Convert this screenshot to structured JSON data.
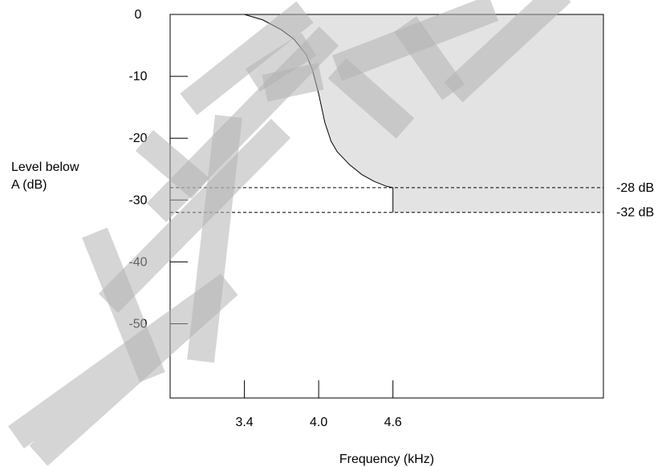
{
  "chart_data": {
    "type": "area",
    "xlabel": "Frequency (kHz)",
    "ylabel_lines": [
      "Level below",
      "A (dB)"
    ],
    "x_ticks": [
      {
        "value": 3.4,
        "label": "3.4"
      },
      {
        "value": 4.0,
        "label": "4.0"
      },
      {
        "value": 4.6,
        "label": "4.6"
      }
    ],
    "y_ticks": [
      {
        "value": 0,
        "label": "0"
      },
      {
        "value": -10,
        "label": "-10"
      },
      {
        "value": -20,
        "label": "-20"
      },
      {
        "value": -30,
        "label": "-30"
      },
      {
        "value": -40,
        "label": "-40"
      },
      {
        "value": -50,
        "label": "-50"
      }
    ],
    "xlim": [
      2.8,
      6.3
    ],
    "ylim": [
      -62,
      0
    ],
    "grid": false,
    "curve": {
      "x": [
        2.8,
        3.4,
        3.55,
        3.7,
        3.8,
        3.9,
        3.95,
        4.0,
        4.05,
        4.1,
        4.15,
        4.25,
        4.35,
        4.45,
        4.55,
        4.6
      ],
      "y": [
        0,
        0,
        -0.9,
        -2.5,
        -4.0,
        -6.5,
        -9.0,
        -12.8,
        -17.5,
        -20.5,
        -22.2,
        -24.3,
        -25.9,
        -27.0,
        -27.8,
        -28.0
      ]
    },
    "step": {
      "x": 4.6,
      "from": -28,
      "to": -32
    },
    "shaded_region_color": "#e3e3e3",
    "reference_lines": [
      {
        "value": -28,
        "label": "-28 dB",
        "style": "dashed"
      },
      {
        "value": -32,
        "label": "-32 dB",
        "style": "dashed"
      }
    ],
    "watermark": "NEIDE"
  }
}
